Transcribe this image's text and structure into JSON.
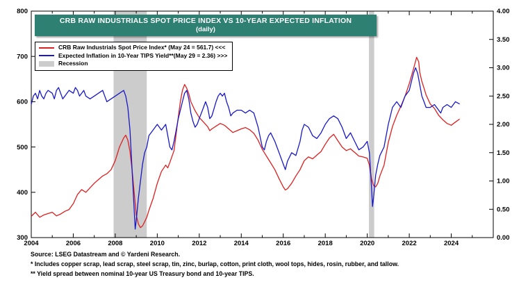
{
  "title": {
    "line1": "CRB RAW INDUSTRIALS SPOT PRICE INDEX VS 10-YEAR EXPECTED INFLATION",
    "line2": "(daily)"
  },
  "colors": {
    "banner": "#2e8073",
    "recession": "#cccccc",
    "crb_red": "#dd1f1f",
    "tips_blue": "#1818c8"
  },
  "legend": {
    "items": [
      {
        "label": "CRB Raw Industrials Spot Price Index* (May 24 = 561.7) <<<",
        "swatch": "line",
        "color": "#dd1f1f"
      },
      {
        "label": "Expected Inflation in 10-Year TIPS Yield**(May 29 = 2.36) >>>",
        "swatch": "line",
        "color": "#1818c8"
      },
      {
        "label": "Recession",
        "swatch": "rect",
        "color": "#cccccc"
      }
    ]
  },
  "footnotes": {
    "source": "Source: LSEG Datastream and © Yardeni Research.",
    "note1": "* Includes copper scrap, lead scrap, steel scrap, tin, zinc, burlap, cotton, print cloth, wool tops, hides, rosin, rubber, and tallow.",
    "note2": "** Yield spread between nominal 10-year US Treasury bond and 10-year TIPS."
  },
  "chart_data": {
    "type": "line",
    "title": "CRB RAW INDUSTRIALS SPOT PRICE INDEX VS 10-YEAR EXPECTED INFLATION (daily)",
    "x_range": [
      2004,
      2026
    ],
    "x_ticks_major": [
      2004,
      2006,
      2008,
      2010,
      2012,
      2014,
      2016,
      2018,
      2020,
      2022,
      2024
    ],
    "x_minor_step": 1,
    "left_axis": {
      "range": [
        300,
        800
      ],
      "ticks": [
        300,
        400,
        500,
        600,
        700,
        800
      ]
    },
    "right_axis": {
      "range": [
        0,
        4
      ],
      "ticks": [
        0,
        0.5,
        1,
        1.5,
        2,
        2.5,
        3,
        3.5,
        4
      ]
    },
    "recession_color": "#cccccc",
    "recessions": [
      [
        2007.92,
        2009.5
      ],
      [
        2020.08,
        2020.33
      ]
    ],
    "series": [
      {
        "name": "CRB Raw Industrials Spot Price Index",
        "axis": "left",
        "color": "#dd1f1f",
        "last_label": "May 24 = 561.7",
        "points": [
          [
            2004.0,
            347
          ],
          [
            2004.2,
            356
          ],
          [
            2004.4,
            345
          ],
          [
            2004.6,
            350
          ],
          [
            2004.8,
            353
          ],
          [
            2005.0,
            356
          ],
          [
            2005.2,
            348
          ],
          [
            2005.4,
            352
          ],
          [
            2005.6,
            358
          ],
          [
            2005.8,
            362
          ],
          [
            2006.0,
            375
          ],
          [
            2006.2,
            395
          ],
          [
            2006.4,
            406
          ],
          [
            2006.6,
            400
          ],
          [
            2006.8,
            410
          ],
          [
            2007.0,
            420
          ],
          [
            2007.2,
            428
          ],
          [
            2007.4,
            436
          ],
          [
            2007.6,
            441
          ],
          [
            2007.8,
            450
          ],
          [
            2008.0,
            470
          ],
          [
            2008.2,
            500
          ],
          [
            2008.4,
            520
          ],
          [
            2008.5,
            526
          ],
          [
            2008.6,
            515
          ],
          [
            2008.7,
            490
          ],
          [
            2008.8,
            450
          ],
          [
            2008.9,
            400
          ],
          [
            2009.0,
            350
          ],
          [
            2009.1,
            330
          ],
          [
            2009.2,
            322
          ],
          [
            2009.3,
            326
          ],
          [
            2009.4,
            335
          ],
          [
            2009.5,
            345
          ],
          [
            2009.6,
            360
          ],
          [
            2009.8,
            386
          ],
          [
            2010.0,
            420
          ],
          [
            2010.2,
            446
          ],
          [
            2010.4,
            460
          ],
          [
            2010.5,
            454
          ],
          [
            2010.6,
            466
          ],
          [
            2010.8,
            492
          ],
          [
            2011.0,
            566
          ],
          [
            2011.1,
            600
          ],
          [
            2011.2,
            625
          ],
          [
            2011.3,
            638
          ],
          [
            2011.4,
            630
          ],
          [
            2011.5,
            618
          ],
          [
            2011.6,
            600
          ],
          [
            2011.8,
            580
          ],
          [
            2012.0,
            565
          ],
          [
            2012.2,
            555
          ],
          [
            2012.4,
            545
          ],
          [
            2012.5,
            536
          ],
          [
            2012.6,
            540
          ],
          [
            2012.8,
            546
          ],
          [
            2013.0,
            552
          ],
          [
            2013.2,
            548
          ],
          [
            2013.4,
            540
          ],
          [
            2013.6,
            532
          ],
          [
            2013.8,
            536
          ],
          [
            2014.0,
            540
          ],
          [
            2014.2,
            543
          ],
          [
            2014.4,
            538
          ],
          [
            2014.6,
            530
          ],
          [
            2014.8,
            515
          ],
          [
            2015.0,
            495
          ],
          [
            2015.2,
            480
          ],
          [
            2015.4,
            465
          ],
          [
            2015.6,
            450
          ],
          [
            2015.8,
            430
          ],
          [
            2016.0,
            412
          ],
          [
            2016.1,
            405
          ],
          [
            2016.2,
            408
          ],
          [
            2016.4,
            420
          ],
          [
            2016.6,
            436
          ],
          [
            2016.8,
            450
          ],
          [
            2017.0,
            470
          ],
          [
            2017.2,
            478
          ],
          [
            2017.4,
            474
          ],
          [
            2017.6,
            482
          ],
          [
            2017.8,
            490
          ],
          [
            2018.0,
            506
          ],
          [
            2018.2,
            520
          ],
          [
            2018.4,
            528
          ],
          [
            2018.6,
            514
          ],
          [
            2018.8,
            500
          ],
          [
            2019.0,
            492
          ],
          [
            2019.2,
            496
          ],
          [
            2019.4,
            488
          ],
          [
            2019.6,
            480
          ],
          [
            2019.8,
            478
          ],
          [
            2020.0,
            475
          ],
          [
            2020.1,
            460
          ],
          [
            2020.2,
            430
          ],
          [
            2020.3,
            415
          ],
          [
            2020.4,
            412
          ],
          [
            2020.5,
            420
          ],
          [
            2020.6,
            436
          ],
          [
            2020.8,
            460
          ],
          [
            2021.0,
            510
          ],
          [
            2021.2,
            545
          ],
          [
            2021.4,
            570
          ],
          [
            2021.6,
            590
          ],
          [
            2021.8,
            612
          ],
          [
            2022.0,
            640
          ],
          [
            2022.2,
            672
          ],
          [
            2022.35,
            698
          ],
          [
            2022.45,
            688
          ],
          [
            2022.5,
            665
          ],
          [
            2022.6,
            645
          ],
          [
            2022.7,
            630
          ],
          [
            2022.8,
            615
          ],
          [
            2023.0,
            595
          ],
          [
            2023.2,
            585
          ],
          [
            2023.4,
            570
          ],
          [
            2023.6,
            560
          ],
          [
            2023.8,
            552
          ],
          [
            2024.0,
            548
          ],
          [
            2024.2,
            555
          ],
          [
            2024.4,
            561.7
          ]
        ]
      },
      {
        "name": "Expected Inflation in 10-Year TIPS Yield",
        "axis": "right",
        "color": "#1818c8",
        "last_label": "May 29 = 2.36",
        "points": [
          [
            2004.0,
            2.35
          ],
          [
            2004.1,
            2.5
          ],
          [
            2004.2,
            2.55
          ],
          [
            2004.3,
            2.45
          ],
          [
            2004.4,
            2.6
          ],
          [
            2004.5,
            2.5
          ],
          [
            2004.6,
            2.45
          ],
          [
            2004.7,
            2.55
          ],
          [
            2004.8,
            2.6
          ],
          [
            2005.0,
            2.55
          ],
          [
            2005.1,
            2.45
          ],
          [
            2005.2,
            2.6
          ],
          [
            2005.3,
            2.65
          ],
          [
            2005.4,
            2.55
          ],
          [
            2005.5,
            2.45
          ],
          [
            2005.6,
            2.5
          ],
          [
            2005.8,
            2.6
          ],
          [
            2006.0,
            2.55
          ],
          [
            2006.1,
            2.65
          ],
          [
            2006.2,
            2.6
          ],
          [
            2006.3,
            2.5
          ],
          [
            2006.4,
            2.55
          ],
          [
            2006.5,
            2.6
          ],
          [
            2006.6,
            2.5
          ],
          [
            2006.8,
            2.45
          ],
          [
            2007.0,
            2.5
          ],
          [
            2007.2,
            2.55
          ],
          [
            2007.4,
            2.6
          ],
          [
            2007.5,
            2.5
          ],
          [
            2007.6,
            2.4
          ],
          [
            2007.8,
            2.45
          ],
          [
            2008.0,
            2.5
          ],
          [
            2008.2,
            2.55
          ],
          [
            2008.4,
            2.6
          ],
          [
            2008.5,
            2.5
          ],
          [
            2008.6,
            2.3
          ],
          [
            2008.7,
            1.9
          ],
          [
            2008.8,
            1.2
          ],
          [
            2008.9,
            0.5
          ],
          [
            2008.95,
            0.15
          ],
          [
            2009.0,
            0.3
          ],
          [
            2009.1,
            0.7
          ],
          [
            2009.2,
            1.0
          ],
          [
            2009.3,
            1.3
          ],
          [
            2009.4,
            1.5
          ],
          [
            2009.5,
            1.6
          ],
          [
            2009.6,
            1.8
          ],
          [
            2009.8,
            1.9
          ],
          [
            2010.0,
            2.0
          ],
          [
            2010.2,
            1.9
          ],
          [
            2010.4,
            2.0
          ],
          [
            2010.5,
            1.8
          ],
          [
            2010.6,
            1.6
          ],
          [
            2010.7,
            1.55
          ],
          [
            2010.8,
            1.7
          ],
          [
            2010.9,
            1.9
          ],
          [
            2011.0,
            2.1
          ],
          [
            2011.2,
            2.4
          ],
          [
            2011.3,
            2.55
          ],
          [
            2011.4,
            2.6
          ],
          [
            2011.5,
            2.45
          ],
          [
            2011.6,
            2.2
          ],
          [
            2011.7,
            2.05
          ],
          [
            2011.8,
            1.95
          ],
          [
            2011.9,
            2.0
          ],
          [
            2012.0,
            2.1
          ],
          [
            2012.2,
            2.3
          ],
          [
            2012.3,
            2.4
          ],
          [
            2012.4,
            2.3
          ],
          [
            2012.5,
            2.1
          ],
          [
            2012.6,
            2.15
          ],
          [
            2012.8,
            2.4
          ],
          [
            2012.9,
            2.5
          ],
          [
            2013.0,
            2.55
          ],
          [
            2013.1,
            2.5
          ],
          [
            2013.2,
            2.55
          ],
          [
            2013.3,
            2.4
          ],
          [
            2013.4,
            2.3
          ],
          [
            2013.5,
            2.15
          ],
          [
            2013.6,
            2.2
          ],
          [
            2013.8,
            2.25
          ],
          [
            2014.0,
            2.25
          ],
          [
            2014.2,
            2.2
          ],
          [
            2014.4,
            2.25
          ],
          [
            2014.6,
            2.2
          ],
          [
            2014.8,
            1.95
          ],
          [
            2015.0,
            1.6
          ],
          [
            2015.1,
            1.55
          ],
          [
            2015.2,
            1.7
          ],
          [
            2015.3,
            1.8
          ],
          [
            2015.4,
            1.85
          ],
          [
            2015.6,
            1.7
          ],
          [
            2015.8,
            1.5
          ],
          [
            2016.0,
            1.3
          ],
          [
            2016.1,
            1.2
          ],
          [
            2016.2,
            1.35
          ],
          [
            2016.4,
            1.5
          ],
          [
            2016.6,
            1.45
          ],
          [
            2016.8,
            1.7
          ],
          [
            2016.9,
            1.9
          ],
          [
            2017.0,
            2.0
          ],
          [
            2017.2,
            1.95
          ],
          [
            2017.4,
            1.8
          ],
          [
            2017.6,
            1.75
          ],
          [
            2017.8,
            1.85
          ],
          [
            2018.0,
            2.0
          ],
          [
            2018.2,
            2.1
          ],
          [
            2018.4,
            2.15
          ],
          [
            2018.6,
            2.1
          ],
          [
            2018.8,
            1.95
          ],
          [
            2019.0,
            1.75
          ],
          [
            2019.2,
            1.85
          ],
          [
            2019.4,
            1.7
          ],
          [
            2019.6,
            1.55
          ],
          [
            2019.8,
            1.6
          ],
          [
            2020.0,
            1.7
          ],
          [
            2020.1,
            1.5
          ],
          [
            2020.2,
            0.9
          ],
          [
            2020.25,
            0.55
          ],
          [
            2020.3,
            0.7
          ],
          [
            2020.4,
            1.1
          ],
          [
            2020.5,
            1.3
          ],
          [
            2020.6,
            1.45
          ],
          [
            2020.8,
            1.6
          ],
          [
            2021.0,
            2.0
          ],
          [
            2021.2,
            2.3
          ],
          [
            2021.4,
            2.4
          ],
          [
            2021.5,
            2.35
          ],
          [
            2021.6,
            2.3
          ],
          [
            2021.8,
            2.5
          ],
          [
            2022.0,
            2.6
          ],
          [
            2022.2,
            2.9
          ],
          [
            2022.3,
            3.0
          ],
          [
            2022.4,
            2.9
          ],
          [
            2022.5,
            2.7
          ],
          [
            2022.6,
            2.5
          ],
          [
            2022.7,
            2.4
          ],
          [
            2022.8,
            2.3
          ],
          [
            2023.0,
            2.3
          ],
          [
            2023.2,
            2.35
          ],
          [
            2023.4,
            2.25
          ],
          [
            2023.5,
            2.2
          ],
          [
            2023.6,
            2.3
          ],
          [
            2023.8,
            2.35
          ],
          [
            2024.0,
            2.3
          ],
          [
            2024.2,
            2.4
          ],
          [
            2024.4,
            2.36
          ]
        ]
      }
    ]
  }
}
